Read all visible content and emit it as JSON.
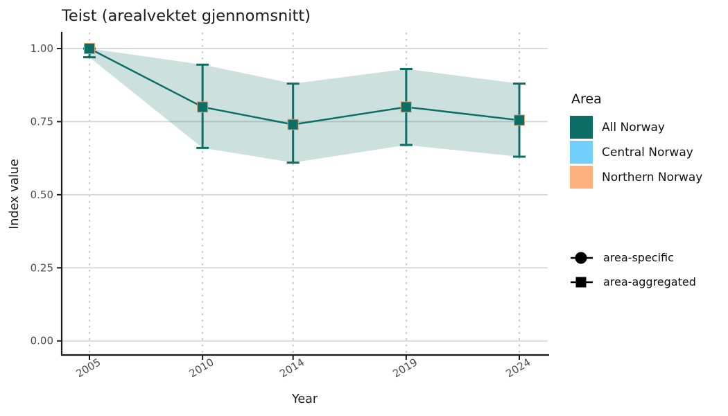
{
  "chart_data": {
    "type": "line",
    "title": "Teist (arealvektet gjennomsnitt)",
    "xlabel": "Year",
    "ylabel": "Index value",
    "x": [
      2005,
      2010,
      2014,
      2019,
      2024
    ],
    "x_tick_labels": [
      "2005",
      "2010",
      "2014",
      "2019",
      "2024"
    ],
    "y_ticks": [
      1.0,
      0.75,
      0.5,
      0.25,
      0.0
    ],
    "y_tick_labels": [
      "1.00",
      "0.75",
      "0.50",
      "0.25",
      "0.00"
    ],
    "ylim": [
      0,
      1
    ],
    "grid": {
      "horizontal": "solid",
      "vertical": "dotted"
    },
    "legend_position": "right",
    "series": [
      {
        "name": "All Norway",
        "marker": "square",
        "values": [
          1.0,
          0.8,
          0.74,
          0.8,
          0.755
        ],
        "ci_lower": [
          0.97,
          0.66,
          0.61,
          0.67,
          0.63
        ],
        "ci_upper": [
          1.0,
          0.945,
          0.88,
          0.93,
          0.88
        ]
      }
    ],
    "legend": {
      "title": "Area",
      "entries": [
        {
          "label": "All Norway",
          "color": "#0c6e64"
        },
        {
          "label": "Central Norway",
          "color": "#72cffa"
        },
        {
          "label": "Northern Norway",
          "color": "#fdb07e"
        }
      ],
      "shape_entries": [
        {
          "label": "area-specific",
          "shape": "circle"
        },
        {
          "label": "area-aggregated",
          "shape": "square"
        }
      ]
    },
    "colors": {
      "series_teal": "#0c6e64",
      "ribbon_fill": "#0c6e64",
      "ribbon_opacity": "0.21",
      "marker_edge": "#dfa273",
      "grid_major": "#d9d9d9",
      "grid_dotted": "#c4c4c4",
      "axis": "#1a1a1a",
      "tick_label": "#4d4d4d",
      "text": "#1a1a1a",
      "legend_glyph": "#000000"
    }
  }
}
